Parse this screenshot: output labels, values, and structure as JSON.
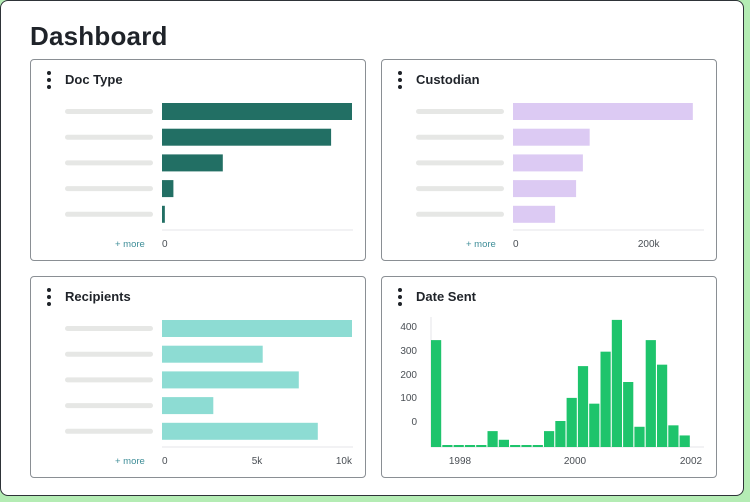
{
  "page": {
    "title": "Dashboard"
  },
  "panels": {
    "doc_type": {
      "title": "Doc Type",
      "more_label": "+ more",
      "color": "#226f64"
    },
    "custodian": {
      "title": "Custodian",
      "more_label": "+ more",
      "color": "#dccaf3"
    },
    "recipients": {
      "title": "Recipients",
      "more_label": "+ more",
      "color": "#8ddcd3"
    },
    "date_sent": {
      "title": "Date Sent",
      "color": "#1ec46c"
    }
  },
  "chart_data": [
    {
      "type": "bar",
      "title": "Doc Type",
      "orientation": "horizontal",
      "categories": [
        "",
        "",
        "",
        "",
        ""
      ],
      "values": [
        100,
        89,
        32,
        6,
        1.5
      ],
      "x_ticks": [
        "0"
      ],
      "grid": false
    },
    {
      "type": "bar",
      "title": "Custodian",
      "orientation": "horizontal",
      "categories": [
        "",
        "",
        "",
        "",
        ""
      ],
      "values": [
        265000,
        113000,
        103000,
        93000,
        62000
      ],
      "x_ticks": [
        "0",
        "200k"
      ],
      "xlim": [
        0,
        280000
      ],
      "grid": false
    },
    {
      "type": "bar",
      "title": "Recipients",
      "orientation": "horizontal",
      "categories": [
        "",
        "",
        "",
        "",
        ""
      ],
      "values": [
        10000,
        5300,
        7200,
        2700,
        8200
      ],
      "x_ticks": [
        "0",
        "5k",
        "10k"
      ],
      "xlim": [
        0,
        10000
      ],
      "grid": false
    },
    {
      "type": "bar",
      "title": "Date Sent",
      "orientation": "vertical",
      "values": [
        370,
        5,
        5,
        5,
        5,
        55,
        25,
        5,
        5,
        5,
        55,
        90,
        170,
        280,
        150,
        330,
        440,
        225,
        70,
        370,
        285,
        75,
        40
      ],
      "y_ticks": [
        "400",
        "300",
        "200",
        "100",
        "0"
      ],
      "x_ticks": [
        "1998",
        "2000",
        "2002"
      ],
      "grid": false
    }
  ]
}
